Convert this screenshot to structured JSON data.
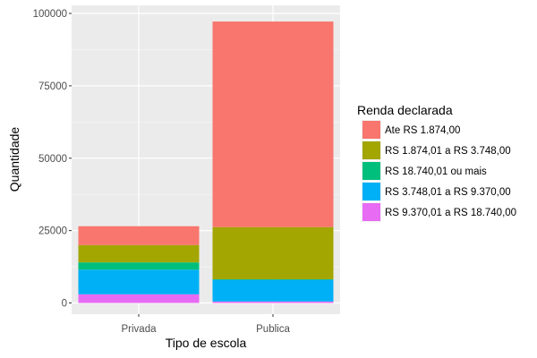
{
  "chart_data": {
    "type": "bar",
    "stacked": true,
    "categories": [
      "Privada",
      "Publica"
    ],
    "xlabel": "Tipo de escola",
    "ylabel": "Quantidade",
    "ylim": [
      0,
      100000
    ],
    "yticks": [
      0,
      25000,
      50000,
      75000,
      100000
    ],
    "ytick_labels": [
      "0",
      "25000",
      "50000",
      "75000",
      "100000"
    ],
    "grid": true,
    "legend": {
      "title": "Renda declarada",
      "position": "right"
    },
    "series": [
      {
        "name": "Ate RS 1.874,00",
        "color": "#F8766D",
        "values": [
          6500,
          71000
        ]
      },
      {
        "name": "RS 1.874,01 a RS 3.748,00",
        "color": "#A3A500",
        "values": [
          6000,
          18000
        ]
      },
      {
        "name": "RS 18.740,01 ou mais",
        "color": "#00BF7D",
        "values": [
          2500,
          200
        ]
      },
      {
        "name": "RS 3.748,01 a RS 9.370,00",
        "color": "#00B0F6",
        "values": [
          8500,
          7500
        ]
      },
      {
        "name": "RS 9.370,01 a RS 18.740,00",
        "color": "#E76BF3",
        "values": [
          3000,
          500
        ]
      }
    ],
    "stack_order_bottom_to_top": [
      4,
      3,
      2,
      1,
      0
    ]
  }
}
